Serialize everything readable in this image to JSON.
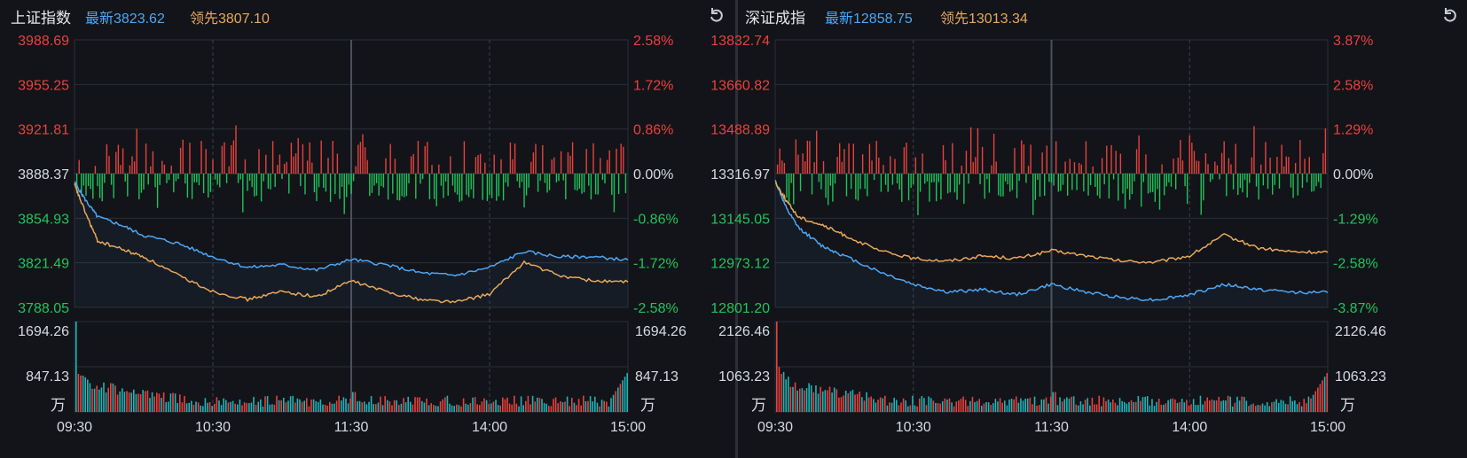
{
  "panels": [
    {
      "name": "上证指数",
      "latest_label": "最新3823.62",
      "lead_label": "领先3807.10",
      "price_ticks": [
        "3988.69",
        "3955.25",
        "3921.81",
        "3888.37",
        "3854.93",
        "3821.49",
        "3788.05"
      ],
      "pct_ticks": [
        "2.58%",
        "1.72%",
        "0.86%",
        "0.00%",
        "-0.86%",
        "-1.72%",
        "-2.58%"
      ],
      "vol_ticks": [
        "1694.26",
        "847.13"
      ],
      "vol_unit": "万",
      "time_labels": [
        "09:30",
        "10:30",
        "11:30",
        "14:00",
        "15:00"
      ]
    },
    {
      "name": "深证成指",
      "latest_label": "最新12858.75",
      "lead_label": "领先13013.34",
      "price_ticks": [
        "13832.74",
        "13660.82",
        "13488.89",
        "13316.97",
        "13145.05",
        "12973.12",
        "12801.20"
      ],
      "pct_ticks": [
        "3.87%",
        "2.58%",
        "1.29%",
        "0.00%",
        "-1.29%",
        "-2.58%",
        "-3.87%"
      ],
      "vol_ticks": [
        "2126.46",
        "1063.23"
      ],
      "vol_unit": "万",
      "time_labels": [
        "09:30",
        "10:30",
        "11:30",
        "14:00",
        "15:00"
      ]
    }
  ],
  "colors": {
    "background": "#121419",
    "grid": "#2a2e37",
    "up": "#e8413e",
    "down": "#1fc45a",
    "neutral": "#d8dbe2",
    "latest_line": "#4ea6f5",
    "lead_line": "#e8a85a",
    "volume_bar_up": "#e8413e",
    "volume_bar_down": "#1fb4b8"
  },
  "chart_data": [
    {
      "type": "line",
      "title": "上证指数",
      "x_labels": [
        "09:30",
        "10:30",
        "11:30",
        "14:00",
        "15:00"
      ],
      "ylim": [
        3788.05,
        3988.69
      ],
      "prev_close": 3888.37,
      "series": [
        {
          "name": "最新",
          "x": [
            0,
            5,
            10,
            20,
            30,
            45,
            60,
            75,
            90,
            105,
            120,
            135,
            150,
            165,
            180,
            195,
            210,
            225,
            240
          ],
          "values": [
            3882,
            3868,
            3856,
            3850,
            3842,
            3836,
            3826,
            3818,
            3820,
            3816,
            3824,
            3820,
            3814,
            3812,
            3818,
            3830,
            3826,
            3826,
            3823.62
          ]
        },
        {
          "name": "领先",
          "x": [
            0,
            5,
            10,
            20,
            30,
            45,
            60,
            75,
            90,
            105,
            120,
            135,
            150,
            165,
            180,
            195,
            210,
            225,
            240
          ],
          "values": [
            3880,
            3858,
            3838,
            3832,
            3826,
            3812,
            3800,
            3794,
            3800,
            3796,
            3808,
            3800,
            3794,
            3792,
            3798,
            3822,
            3812,
            3808,
            3807.1
          ]
        }
      ],
      "volume_ylim": [
        0,
        1694.26
      ]
    },
    {
      "type": "line",
      "title": "深证成指",
      "x_labels": [
        "09:30",
        "10:30",
        "11:30",
        "14:00",
        "15:00"
      ],
      "ylim": [
        12801.2,
        13832.74
      ],
      "prev_close": 13316.97,
      "series": [
        {
          "name": "最新",
          "x": [
            0,
            5,
            10,
            20,
            30,
            45,
            60,
            75,
            90,
            105,
            120,
            135,
            150,
            165,
            180,
            195,
            210,
            225,
            240
          ],
          "values": [
            13290,
            13180,
            13110,
            13040,
            13000,
            12940,
            12890,
            12860,
            12870,
            12850,
            12890,
            12860,
            12840,
            12830,
            12850,
            12890,
            12870,
            12860,
            12858.75
          ]
        },
        {
          "name": "领先",
          "x": [
            0,
            5,
            10,
            20,
            30,
            45,
            60,
            75,
            90,
            105,
            120,
            135,
            150,
            165,
            180,
            195,
            210,
            225,
            240
          ],
          "values": [
            13285,
            13210,
            13150,
            13120,
            13080,
            13020,
            12990,
            12980,
            13000,
            12990,
            13020,
            13000,
            12980,
            12975,
            13000,
            13080,
            13030,
            13015,
            13013.34
          ]
        }
      ],
      "volume_ylim": [
        0,
        2126.46
      ]
    }
  ]
}
